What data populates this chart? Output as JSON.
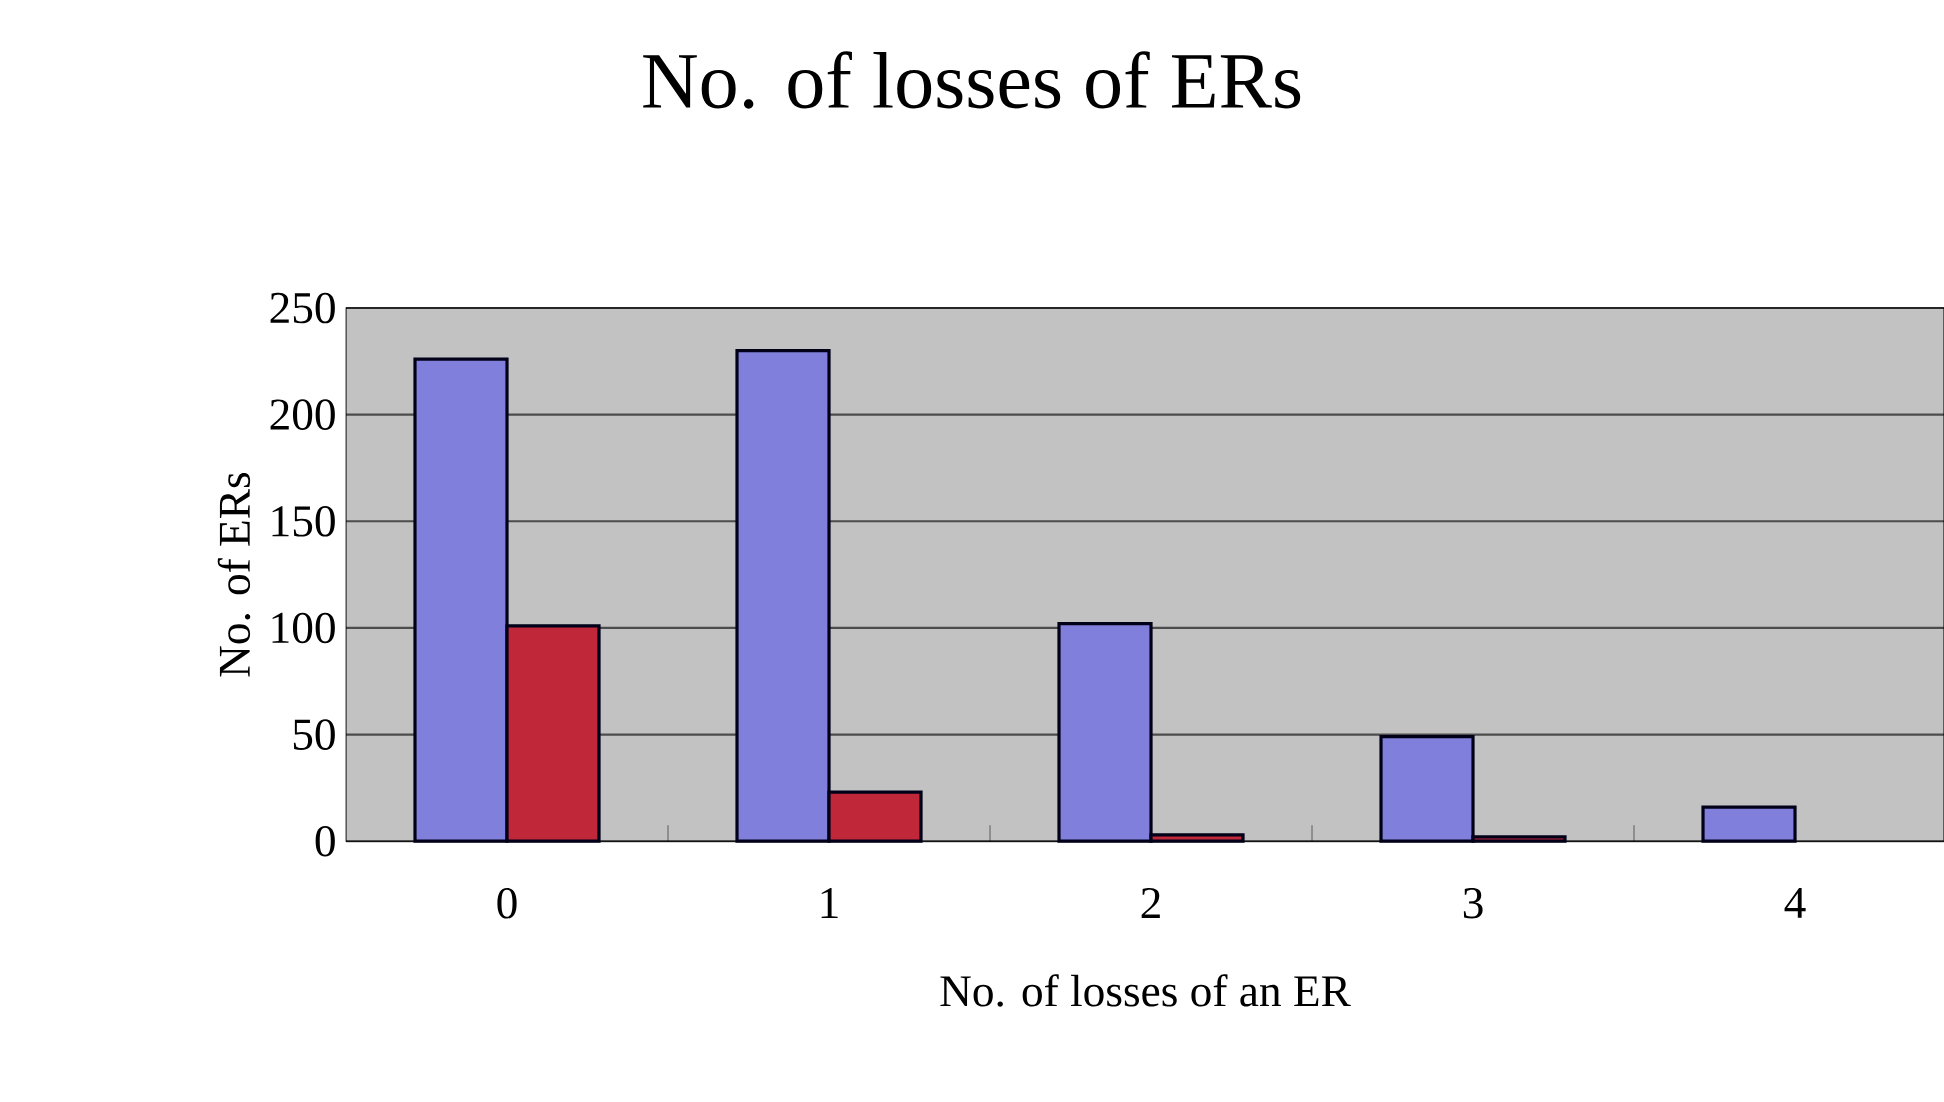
{
  "chart_data": {
    "type": "bar",
    "title": "No. of losses of ERs",
    "xlabel": "No. of losses of an ER",
    "ylabel": "No. of ERs",
    "categories": [
      "0",
      "1",
      "2",
      "3",
      "4"
    ],
    "series": [
      {
        "color": "#8080dc",
        "values": [
          226,
          230,
          102,
          49,
          16
        ]
      },
      {
        "color": "#c0283a",
        "values": [
          101,
          23,
          3,
          2,
          null
        ]
      }
    ],
    "ylim": [
      0,
      250
    ],
    "yticks": [
      0,
      50,
      100,
      150,
      200,
      250
    ],
    "grid": "y"
  }
}
